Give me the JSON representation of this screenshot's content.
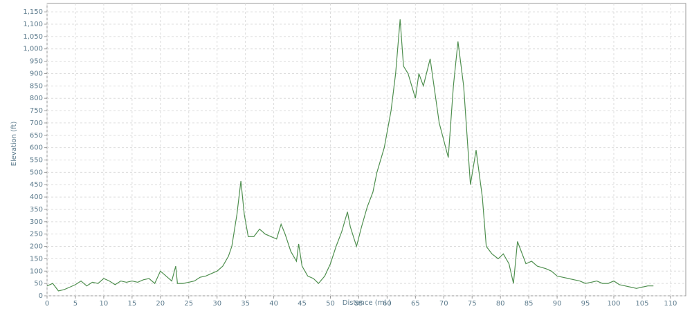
{
  "chart_data": {
    "type": "line",
    "x_label": "Distance (mi )",
    "y_label": "Elevation (ft)",
    "x": [
      0,
      1,
      2,
      3,
      4,
      5,
      6,
      7,
      8,
      9,
      10,
      11,
      12,
      13,
      14,
      15,
      16,
      17,
      18,
      19,
      20,
      21,
      22,
      22.7,
      23,
      24,
      25,
      26,
      27,
      28,
      29,
      30,
      31,
      32,
      32.6,
      33.5,
      34.2,
      34.8,
      35.5,
      36.5,
      37.5,
      38.5,
      39.5,
      40.5,
      41.3,
      42,
      43,
      44,
      44.4,
      45,
      46,
      47,
      47.9,
      49,
      50,
      51,
      52,
      53,
      53.5,
      54.6,
      55.5,
      56.5,
      57.5,
      58.2,
      59.5,
      60.7,
      61.5,
      62.3,
      62.9,
      63.7,
      65,
      65.6,
      66.4,
      67.6,
      69.2,
      70.8,
      71.7,
      72.5,
      73.5,
      74.7,
      75.7,
      76.8,
      77.5,
      78.5,
      79.6,
      80.5,
      81.5,
      82.3,
      83,
      84.5,
      85.5,
      86.5,
      88,
      89,
      90,
      91,
      92,
      93,
      94,
      95,
      96,
      97,
      98,
      99,
      100,
      101,
      102,
      103,
      104,
      105,
      106,
      107
    ],
    "series": [
      {
        "name": "Elevation",
        "color": "#4f8f4f",
        "values": [
          40,
          50,
          20,
          25,
          35,
          45,
          60,
          40,
          55,
          50,
          70,
          60,
          45,
          60,
          55,
          60,
          55,
          65,
          70,
          50,
          100,
          80,
          60,
          120,
          50,
          50,
          55,
          60,
          75,
          80,
          90,
          100,
          120,
          160,
          200,
          330,
          465,
          330,
          240,
          240,
          270,
          250,
          240,
          230,
          290,
          250,
          180,
          140,
          210,
          120,
          80,
          70,
          50,
          80,
          130,
          200,
          260,
          340,
          280,
          200,
          280,
          360,
          420,
          500,
          600,
          750,
          900,
          1120,
          930,
          900,
          800,
          900,
          850,
          960,
          700,
          560,
          850,
          1030,
          850,
          450,
          590,
          400,
          200,
          170,
          150,
          170,
          130,
          50,
          220,
          130,
          140,
          120,
          110,
          100,
          80,
          75,
          70,
          65,
          60,
          50,
          55,
          60,
          50,
          50,
          60,
          45,
          40,
          35,
          30,
          35,
          40,
          40
        ]
      }
    ],
    "xlim": [
      0,
      112.7
    ],
    "ylim": [
      0,
      1184
    ],
    "xticks": [
      0,
      5,
      10,
      15,
      20,
      25,
      30,
      35,
      40,
      45,
      50,
      55,
      60,
      65,
      70,
      75,
      80,
      85,
      90,
      95,
      100,
      105,
      110
    ],
    "yticks": [
      0,
      50,
      100,
      150,
      200,
      250,
      300,
      350,
      400,
      450,
      500,
      550,
      600,
      650,
      700,
      750,
      800,
      850,
      900,
      950,
      {
        "value": 1000,
        "label": "1,000"
      },
      {
        "value": 1050,
        "label": "1,050"
      },
      {
        "value": 1100,
        "label": "1,100"
      },
      {
        "value": 1150,
        "label": "1,150"
      }
    ],
    "grid": true
  }
}
